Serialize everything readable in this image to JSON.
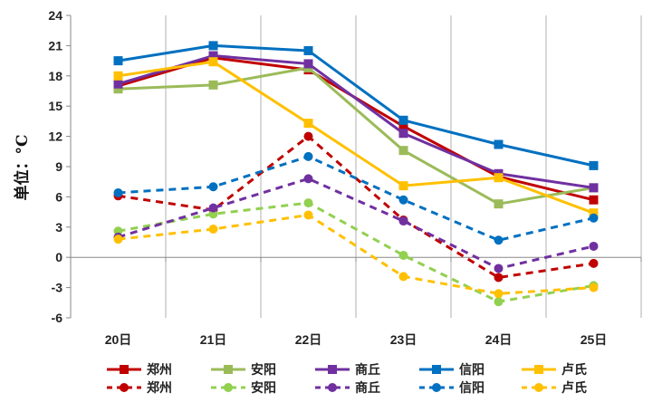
{
  "chart_data": {
    "type": "line",
    "categories": [
      "20日",
      "21日",
      "22日",
      "23日",
      "24日",
      "25日"
    ],
    "ylabel": "单位：°C",
    "ylim": [
      -6,
      24
    ],
    "yticks": [
      -6,
      -3,
      0,
      3,
      6,
      9,
      12,
      15,
      18,
      21,
      24
    ],
    "grid": "vertical gridlines at category boundaries",
    "legend_position": "bottom",
    "series": [
      {
        "name": "郑州",
        "kind": "high",
        "style": "solid",
        "marker": "square",
        "color": "#c00000",
        "values": [
          17.0,
          19.8,
          18.6,
          13.0,
          8.0,
          5.7
        ]
      },
      {
        "name": "安阳",
        "kind": "high",
        "style": "solid",
        "marker": "square",
        "color": "#9bbb59",
        "values": [
          16.7,
          17.1,
          18.8,
          10.6,
          5.3,
          6.9
        ]
      },
      {
        "name": "商丘",
        "kind": "high",
        "style": "solid",
        "marker": "square",
        "color": "#7030a0",
        "values": [
          17.2,
          20.0,
          19.2,
          12.3,
          8.3,
          6.9
        ]
      },
      {
        "name": "信阳",
        "kind": "high",
        "style": "solid",
        "marker": "square",
        "color": "#0070c0",
        "values": [
          19.5,
          21.0,
          20.5,
          13.6,
          11.2,
          9.1
        ]
      },
      {
        "name": "卢氏",
        "kind": "high",
        "style": "solid",
        "marker": "square",
        "color": "#ffc000",
        "values": [
          18.0,
          19.4,
          13.3,
          7.1,
          7.9,
          4.4
        ]
      },
      {
        "name": "郑州",
        "kind": "low",
        "style": "dashed",
        "marker": "circle",
        "color": "#c00000",
        "values": [
          6.1,
          4.7,
          12.0,
          3.7,
          -2.0,
          -0.6
        ]
      },
      {
        "name": "安阳",
        "kind": "low",
        "style": "dashed",
        "marker": "circle",
        "color": "#92d050",
        "values": [
          2.6,
          4.3,
          5.4,
          0.2,
          -4.4,
          -2.8
        ]
      },
      {
        "name": "商丘",
        "kind": "low",
        "style": "dashed",
        "marker": "circle",
        "color": "#7030a0",
        "values": [
          2.0,
          4.9,
          7.8,
          3.6,
          -1.1,
          1.1
        ]
      },
      {
        "name": "信阳",
        "kind": "low",
        "style": "dashed",
        "marker": "circle",
        "color": "#0070c0",
        "values": [
          6.4,
          7.0,
          10.0,
          5.7,
          1.7,
          3.9
        ]
      },
      {
        "name": "卢氏",
        "kind": "low",
        "style": "dashed",
        "marker": "circle",
        "color": "#ffc000",
        "values": [
          1.8,
          2.8,
          4.2,
          -1.9,
          -3.6,
          -3.0
        ]
      }
    ]
  }
}
